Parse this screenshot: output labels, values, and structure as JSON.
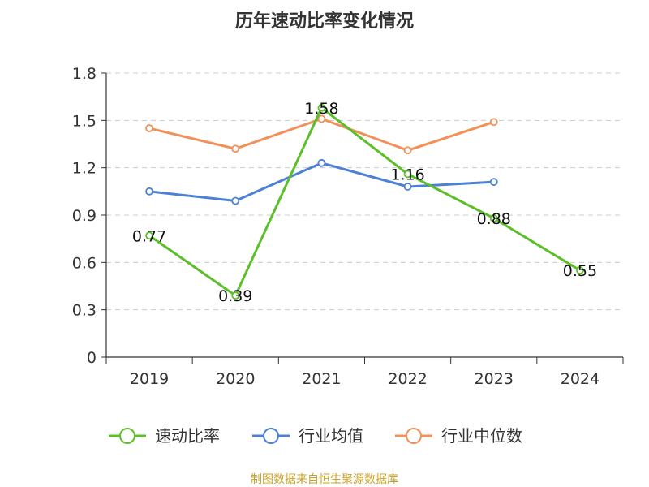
{
  "chart_data": {
    "type": "line",
    "title": "历年速动比率变化情况",
    "categories": [
      "2019",
      "2020",
      "2021",
      "2022",
      "2023",
      "2024"
    ],
    "ylim": [
      0,
      1.8
    ],
    "yticks": [
      "0",
      "0.3",
      "0.6",
      "0.9",
      "1.2",
      "1.5",
      "1.8"
    ],
    "ytick_values": [
      0,
      0.3,
      0.6,
      0.9,
      1.2,
      1.5,
      1.8
    ],
    "grid": true,
    "legend_position": "bottom",
    "series": [
      {
        "name": "速动比率",
        "color": "#5cbf2a",
        "values": [
          0.77,
          0.39,
          1.58,
          1.16,
          0.88,
          0.55
        ],
        "labels": [
          "0.77",
          "0.39",
          "1.58",
          "1.16",
          "0.88",
          "0.55"
        ]
      },
      {
        "name": "行业均值",
        "color": "#4e80d8",
        "values": [
          1.05,
          0.99,
          1.23,
          1.08,
          1.11,
          null
        ]
      },
      {
        "name": "行业中位数",
        "color": "#f39059",
        "values": [
          1.45,
          1.32,
          1.51,
          1.31,
          1.49,
          null
        ]
      }
    ],
    "source": "制图数据来自恒生聚源数据库"
  }
}
